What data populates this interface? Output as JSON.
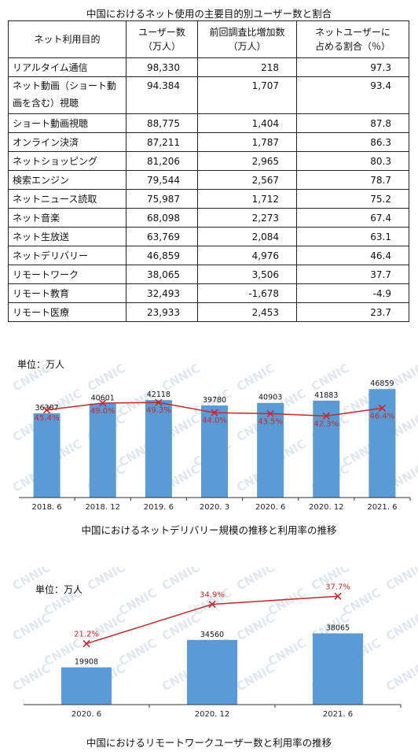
{
  "table_title": "中国におけるネット使用の主要目的別ユーザー数と割合",
  "table": {
    "headers": [
      [
        "ネット利用目的"
      ],
      [
        "ユーザー数",
        "（万人）"
      ],
      [
        "前回調査比増加数",
        "（万人）"
      ],
      [
        "ネットユーザーに",
        "占める割合（％）"
      ]
    ],
    "rows": [
      [
        "リアルタイム通信",
        "98,330",
        "218",
        "97.3"
      ],
      [
        "ネット動画（ショート動画を含む）視聴",
        "94.384",
        "1,707",
        "93.4"
      ],
      [
        "ショート動画視聴",
        "88,775",
        "1,404",
        "87.8"
      ],
      [
        "オンライン決済",
        "87,211",
        "1,787",
        "86.3"
      ],
      [
        "ネットショッピング",
        "81,206",
        "2,965",
        "80.3"
      ],
      [
        "検索エンジン",
        "79,544",
        "2,567",
        "78.7"
      ],
      [
        "ネットニュース読取",
        "75,987",
        "1,712",
        "75.2"
      ],
      [
        "ネット音楽",
        "68,098",
        "2,273",
        "67.4"
      ],
      [
        "ネット生放送",
        "63,769",
        "2,084",
        "63.1"
      ],
      [
        "ネットデリバリー",
        "46,859",
        "4,976",
        "46.4"
      ],
      [
        "リモートワーク",
        "38,065",
        "3,506",
        "37.7"
      ],
      [
        "リモート教育",
        "32,493",
        "-1,678",
        "-4.9"
      ],
      [
        "リモート医療",
        "23,933",
        "2,453",
        "23.7"
      ]
    ]
  },
  "watermark": "CNNIC",
  "colors": {
    "bar": "#5b9bd5",
    "line": "#c62828",
    "axis": "#333333",
    "watermark": "#dfe7f1"
  },
  "chart_data": [
    {
      "type": "bar",
      "unit_label": "単位：万人",
      "caption": "中国におけるネットデリバリー規模の推移と利用率の推移",
      "categories": [
        "2018. 6",
        "2018. 12",
        "2019. 6",
        "2020. 3",
        "2020. 6",
        "2020. 12",
        "2021. 6"
      ],
      "values": [
        36387,
        40601,
        42118,
        39780,
        40903,
        41883,
        46859
      ],
      "value_labels": [
        "36387",
        "40601",
        "42118",
        "39780",
        "40903",
        "41883",
        "46859"
      ],
      "line_values": [
        45.4,
        49.0,
        49.3,
        44.0,
        43.5,
        42.3,
        46.4
      ],
      "line_labels": [
        "45.4%",
        "49.0%",
        "49.3%",
        "44.0%",
        "43.5%",
        "42.3%",
        "46.4%"
      ],
      "ylim": [
        0,
        50000
      ],
      "line_ylim": [
        0,
        60
      ]
    },
    {
      "type": "bar",
      "unit_label": "単位：万人",
      "caption": "中国におけるリモートワークユーザー数と利用率の推移",
      "categories": [
        "2020. 6",
        "2020. 12",
        "2021. 6"
      ],
      "values": [
        19908,
        34560,
        38065
      ],
      "value_labels": [
        "19908",
        "34560",
        "38065"
      ],
      "line_values": [
        21.2,
        34.9,
        37.7
      ],
      "line_labels": [
        "21.2%",
        "34.9%",
        "37.7%"
      ],
      "ylim": [
        0,
        66000
      ],
      "line_ylim": [
        0,
        43
      ]
    }
  ]
}
